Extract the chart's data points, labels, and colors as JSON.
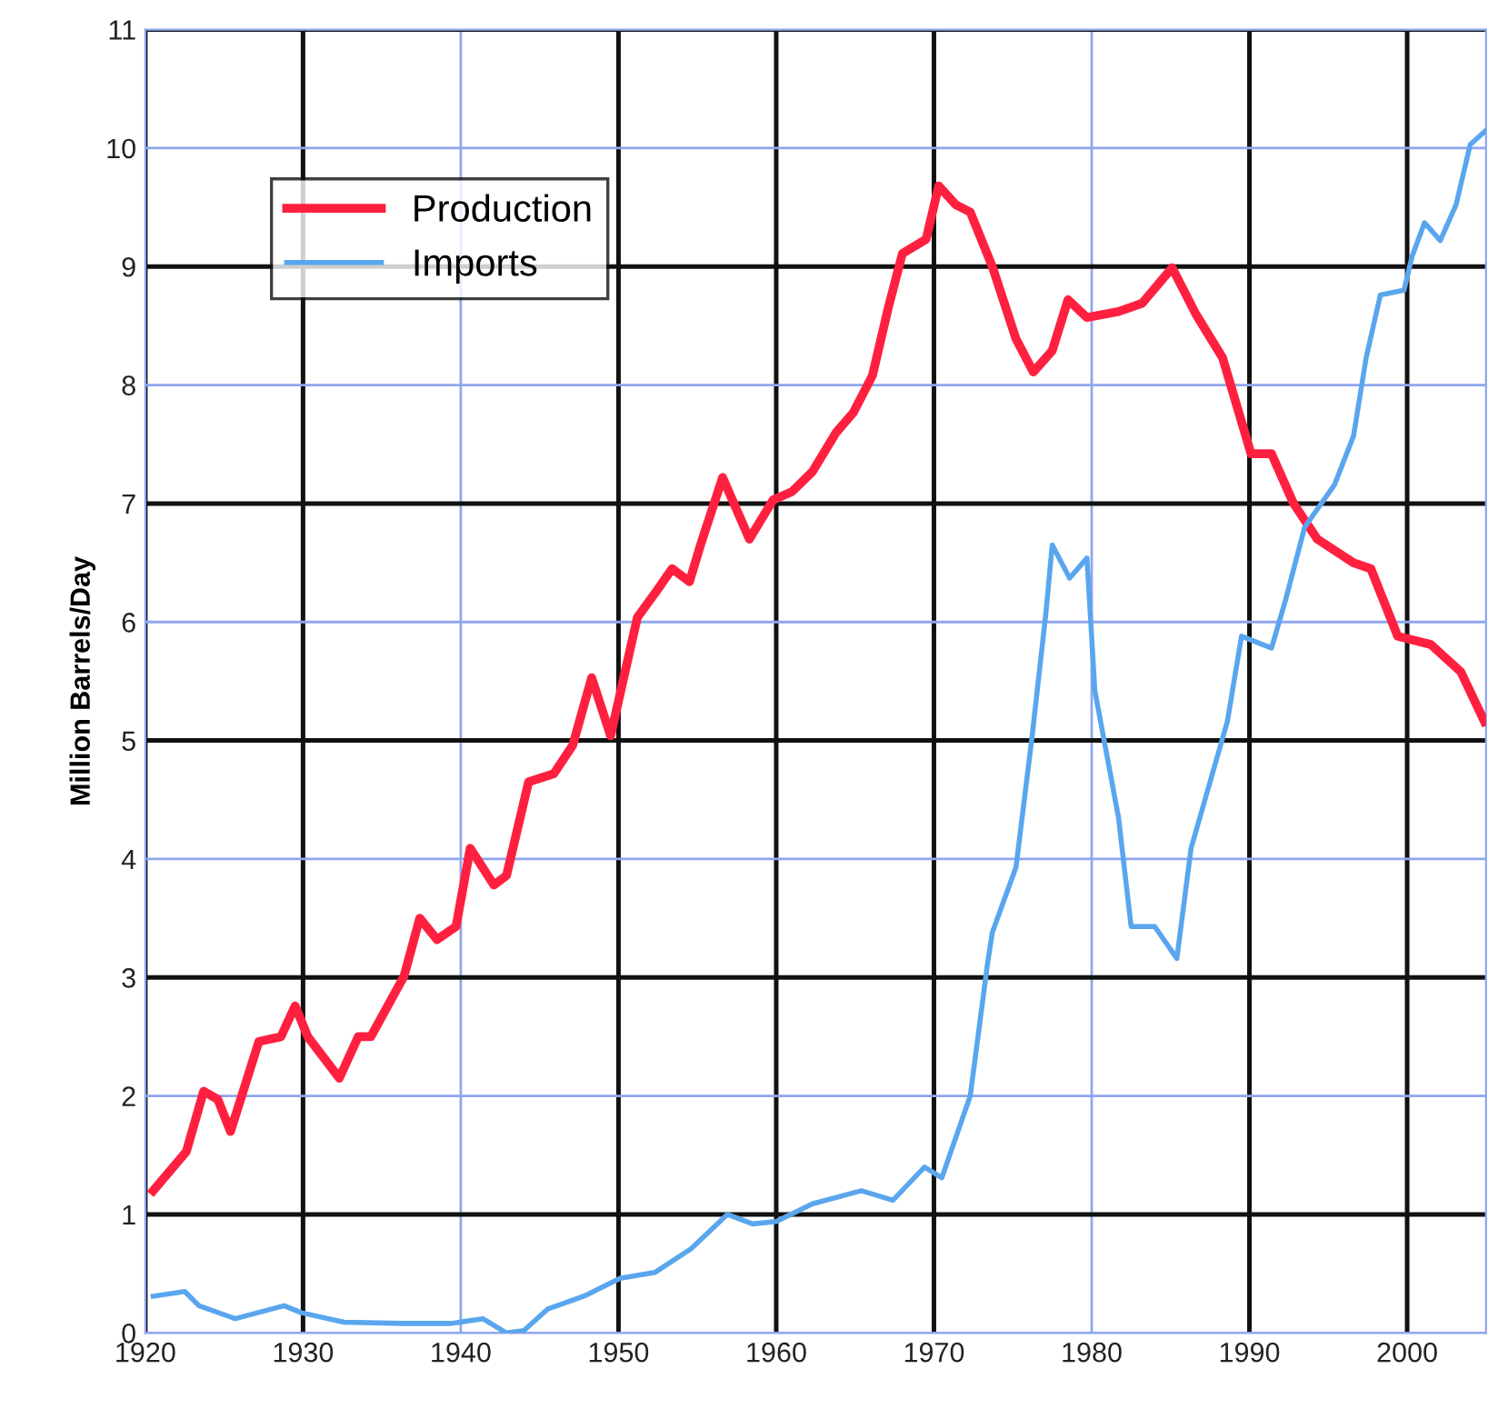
{
  "chart_data": {
    "type": "line",
    "ylabel": "Million Barrels/Day",
    "xlim": [
      1920,
      2005
    ],
    "xticks": [
      1920,
      1930,
      1940,
      1950,
      1960,
      1970,
      1980,
      1990,
      2000
    ],
    "ylim": [
      0,
      11
    ],
    "yticks": [
      0,
      1,
      2,
      3,
      4,
      5,
      6,
      7,
      8,
      9,
      10,
      11
    ],
    "grid": true,
    "legend": "top left",
    "series": [
      {
        "name": "Production",
        "color": "#ff2040",
        "x": [
          1920.5,
          1922.6,
          1923.7,
          1924.6,
          1925.4,
          1927.2,
          1928.6,
          1929.5,
          1930.3,
          1932.3,
          1933.5,
          1934.3,
          1936.4,
          1937.4,
          1938.5,
          1939.7,
          1940.6,
          1942.1,
          1942.9,
          1944.3,
          1945.9,
          1947.1,
          1948.3,
          1949.5,
          1951.2,
          1952.3,
          1953.4,
          1954.5,
          1955.2,
          1956.6,
          1958.3,
          1959.8,
          1961.0,
          1962.3,
          1963.8,
          1964.9,
          1966.1,
          1967.1,
          1968.0,
          1969.5,
          1970.3,
          1971.4,
          1972.3,
          1973.7,
          1975.2,
          1976.3,
          1977.5,
          1978.5,
          1979.7,
          1981.7,
          1983.2,
          1985.1,
          1986.6,
          1988.3,
          1990.1,
          1991.4,
          1992.8,
          1994.3,
          1996.6,
          1997.7,
          1999.4,
          2001.5,
          2003.4,
          2004.9
        ],
        "values": [
          1.2,
          1.53,
          2.04,
          1.97,
          1.7,
          2.46,
          2.5,
          2.76,
          2.5,
          2.15,
          2.5,
          2.5,
          3.01,
          3.5,
          3.32,
          3.43,
          4.09,
          3.78,
          3.86,
          4.65,
          4.72,
          4.96,
          5.53,
          5.04,
          6.04,
          6.24,
          6.45,
          6.34,
          6.65,
          7.22,
          6.7,
          7.03,
          7.1,
          7.27,
          7.6,
          7.77,
          8.08,
          8.65,
          9.11,
          9.23,
          9.68,
          9.52,
          9.46,
          9.0,
          8.39,
          8.11,
          8.29,
          8.72,
          8.57,
          8.62,
          8.69,
          8.99,
          8.6,
          8.23,
          7.42,
          7.42,
          7.0,
          6.7,
          6.5,
          6.45,
          5.88,
          5.81,
          5.58,
          5.16
        ]
      },
      {
        "name": "Imports",
        "color": "#5aa6ee",
        "x": [
          1920.5,
          1922.5,
          1923.4,
          1925.7,
          1928.8,
          1929.9,
          1932.6,
          1936.3,
          1939.4,
          1941.4,
          1942.9,
          1944.0,
          1945.5,
          1947.8,
          1950.1,
          1952.3,
          1954.6,
          1956.9,
          1958.5,
          1960.0,
          1962.3,
          1965.4,
          1967.4,
          1969.4,
          1970.5,
          1972.3,
          1973.4,
          1973.7,
          1975.2,
          1976.2,
          1977.1,
          1977.5,
          1978.6,
          1979.7,
          1980.2,
          1981.7,
          1982.5,
          1984.0,
          1985.4,
          1986.3,
          1988.6,
          1989.5,
          1991.4,
          1992.3,
          1993.5,
          1995.4,
          1996.6,
          1997.4,
          1998.3,
          1999.8,
          2000.3,
          2001.1,
          2002.1,
          2003.1,
          2004.0,
          2005.0
        ],
        "values": [
          0.31,
          0.35,
          0.23,
          0.12,
          0.23,
          0.17,
          0.09,
          0.08,
          0.08,
          0.12,
          0.0,
          0.02,
          0.2,
          0.31,
          0.46,
          0.51,
          0.71,
          1.0,
          0.92,
          0.94,
          1.09,
          1.2,
          1.12,
          1.4,
          1.31,
          2.0,
          3.12,
          3.38,
          3.93,
          5.01,
          6.08,
          6.65,
          6.37,
          6.54,
          5.42,
          4.35,
          3.43,
          3.43,
          3.16,
          4.09,
          5.16,
          5.88,
          5.78,
          6.19,
          6.8,
          7.16,
          7.57,
          8.23,
          8.76,
          8.8,
          9.08,
          9.37,
          9.22,
          9.52,
          10.03,
          10.15
        ]
      }
    ]
  }
}
